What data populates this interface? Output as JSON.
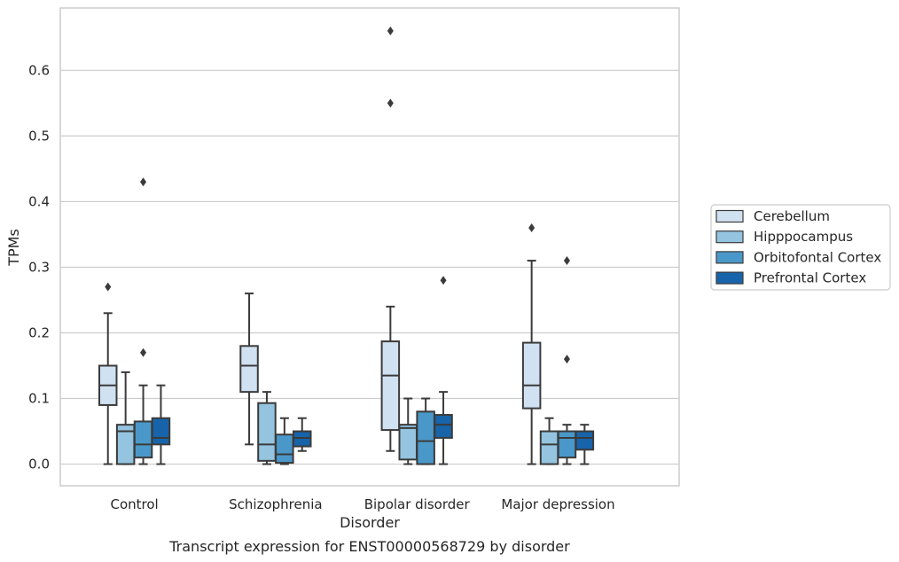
{
  "chart_data": {
    "type": "box",
    "title": "",
    "caption": "Transcript expression for ENST00000568729 by disorder",
    "xlabel": "Disorder",
    "ylabel": "TPMs",
    "ylim": [
      -0.033,
      0.695
    ],
    "yticks": [
      0.0,
      0.1,
      0.2,
      0.3,
      0.4,
      0.5,
      0.6
    ],
    "ytick_labels": [
      "0.0",
      "0.1",
      "0.2",
      "0.3",
      "0.4",
      "0.5",
      "0.6"
    ],
    "grid": "horizontal",
    "legend_position": "right",
    "categories": [
      "Control",
      "Schizophrenia",
      "Bipolar disorder",
      "Major depression"
    ],
    "series": [
      {
        "name": "Cerebellum",
        "color": "#d0e1f2",
        "boxes": [
          {
            "whisker_low": 0.0,
            "q1": 0.09,
            "median": 0.12,
            "q3": 0.15,
            "whisker_high": 0.23,
            "outliers": [
              0.27
            ]
          },
          {
            "whisker_low": 0.03,
            "q1": 0.11,
            "median": 0.15,
            "q3": 0.18,
            "whisker_high": 0.26,
            "outliers": []
          },
          {
            "whisker_low": 0.02,
            "q1": 0.052,
            "median": 0.135,
            "q3": 0.187,
            "whisker_high": 0.24,
            "outliers": [
              0.55,
              0.66
            ]
          },
          {
            "whisker_low": 0.0,
            "q1": 0.085,
            "median": 0.12,
            "q3": 0.185,
            "whisker_high": 0.31,
            "outliers": [
              0.36
            ]
          }
        ]
      },
      {
        "name": "Hipppocampus",
        "color": "#94c4df",
        "boxes": [
          {
            "whisker_low": 0.0,
            "q1": 0.0,
            "median": 0.05,
            "q3": 0.06,
            "whisker_high": 0.14,
            "outliers": []
          },
          {
            "whisker_low": 0.0,
            "q1": 0.005,
            "median": 0.03,
            "q3": 0.093,
            "whisker_high": 0.11,
            "outliers": []
          },
          {
            "whisker_low": 0.0,
            "q1": 0.007,
            "median": 0.055,
            "q3": 0.06,
            "whisker_high": 0.1,
            "outliers": []
          },
          {
            "whisker_low": 0.0,
            "q1": 0.0,
            "median": 0.03,
            "q3": 0.05,
            "whisker_high": 0.07,
            "outliers": []
          }
        ]
      },
      {
        "name": "Orbitofontal Cortex",
        "color": "#4a98c9",
        "boxes": [
          {
            "whisker_low": 0.0,
            "q1": 0.01,
            "median": 0.03,
            "q3": 0.065,
            "whisker_high": 0.12,
            "outliers": [
              0.17,
              0.43
            ]
          },
          {
            "whisker_low": 0.0,
            "q1": 0.002,
            "median": 0.015,
            "q3": 0.045,
            "whisker_high": 0.07,
            "outliers": []
          },
          {
            "whisker_low": 0.0,
            "q1": 0.0,
            "median": 0.035,
            "q3": 0.08,
            "whisker_high": 0.1,
            "outliers": []
          },
          {
            "whisker_low": 0.0,
            "q1": 0.01,
            "median": 0.04,
            "q3": 0.05,
            "whisker_high": 0.06,
            "outliers": [
              0.16,
              0.31
            ]
          }
        ]
      },
      {
        "name": "Prefrontal Cortex",
        "color": "#1764ab",
        "boxes": [
          {
            "whisker_low": 0.0,
            "q1": 0.03,
            "median": 0.04,
            "q3": 0.07,
            "whisker_high": 0.12,
            "outliers": []
          },
          {
            "whisker_low": 0.02,
            "q1": 0.027,
            "median": 0.04,
            "q3": 0.05,
            "whisker_high": 0.07,
            "outliers": []
          },
          {
            "whisker_low": 0.0,
            "q1": 0.04,
            "median": 0.06,
            "q3": 0.075,
            "whisker_high": 0.11,
            "outliers": [
              0.28
            ]
          },
          {
            "whisker_low": 0.0,
            "q1": 0.022,
            "median": 0.04,
            "q3": 0.05,
            "whisker_high": 0.06,
            "outliers": []
          }
        ]
      }
    ]
  }
}
